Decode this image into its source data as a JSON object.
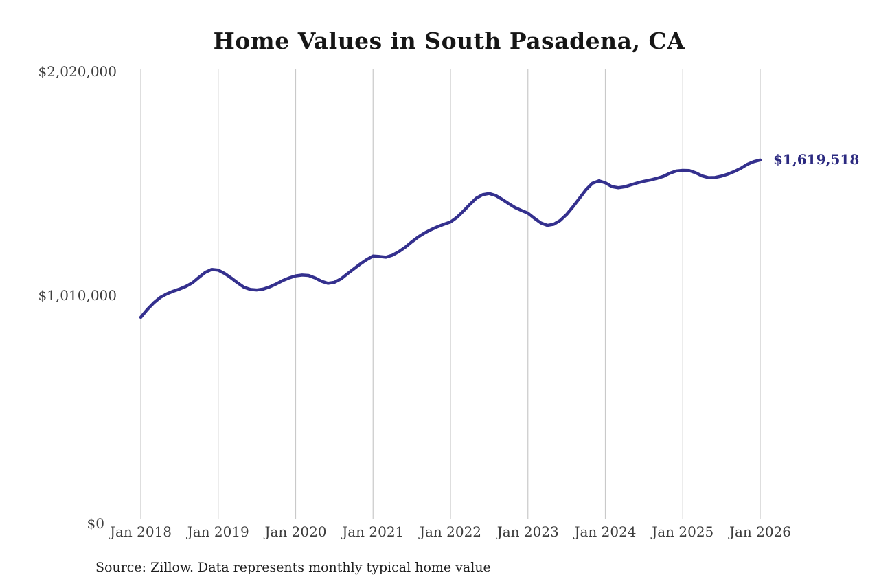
{
  "chart_data": {
    "type": "line",
    "title": "Home Values in South Pasadena, CA",
    "x_tick_labels": [
      "Jan 2018",
      "Jan 2019",
      "Jan 2020",
      "Jan 2021",
      "Jan 2022",
      "Jan 2023",
      "Jan 2024",
      "Jan 2025",
      "Jan 2026"
    ],
    "y_tick_labels": [
      "$2,020,000",
      "$1,010,000",
      "$0"
    ],
    "y_ticks": [
      2020000,
      1010000,
      0
    ],
    "ylim": [
      0,
      2020000
    ],
    "interval": "monthly",
    "grid": "vertical-only",
    "legend": "none",
    "line_color": "#34308e",
    "grid_color": "#c9c9c9",
    "end_label": "$1,619,518",
    "last_value": 1619518,
    "series": [
      {
        "name": "Monthly typical home value",
        "start": "Jan 2018",
        "end": "Jan 2026",
        "values": [
          913000,
          948000,
          978000,
          1002000,
          1018000,
          1030000,
          1040000,
          1052000,
          1068000,
          1092000,
          1115000,
          1128000,
          1125000,
          1110000,
          1090000,
          1068000,
          1048000,
          1038000,
          1036000,
          1040000,
          1050000,
          1063000,
          1078000,
          1090000,
          1099000,
          1103000,
          1101000,
          1090000,
          1075000,
          1066000,
          1070000,
          1085000,
          1108000,
          1130000,
          1152000,
          1172000,
          1188000,
          1186000,
          1183000,
          1192000,
          1208000,
          1228000,
          1252000,
          1274000,
          1292000,
          1307000,
          1320000,
          1331000,
          1341000,
          1362000,
          1390000,
          1420000,
          1448000,
          1464000,
          1469000,
          1460000,
          1443000,
          1424000,
          1406000,
          1393000,
          1381000,
          1358000,
          1337000,
          1326000,
          1331000,
          1348000,
          1375000,
          1410000,
          1448000,
          1486000,
          1515000,
          1526000,
          1517000,
          1500000,
          1495000,
          1499000,
          1508000,
          1517000,
          1524000,
          1530000,
          1537000,
          1546000,
          1560000,
          1570000,
          1573000,
          1572000,
          1562000,
          1548000,
          1540000,
          1541000,
          1547000,
          1556000,
          1568000,
          1582000,
          1600000,
          1612000,
          1619518
        ]
      }
    ],
    "source_note": "Source: Zillow. Data represents monthly typical home value"
  }
}
